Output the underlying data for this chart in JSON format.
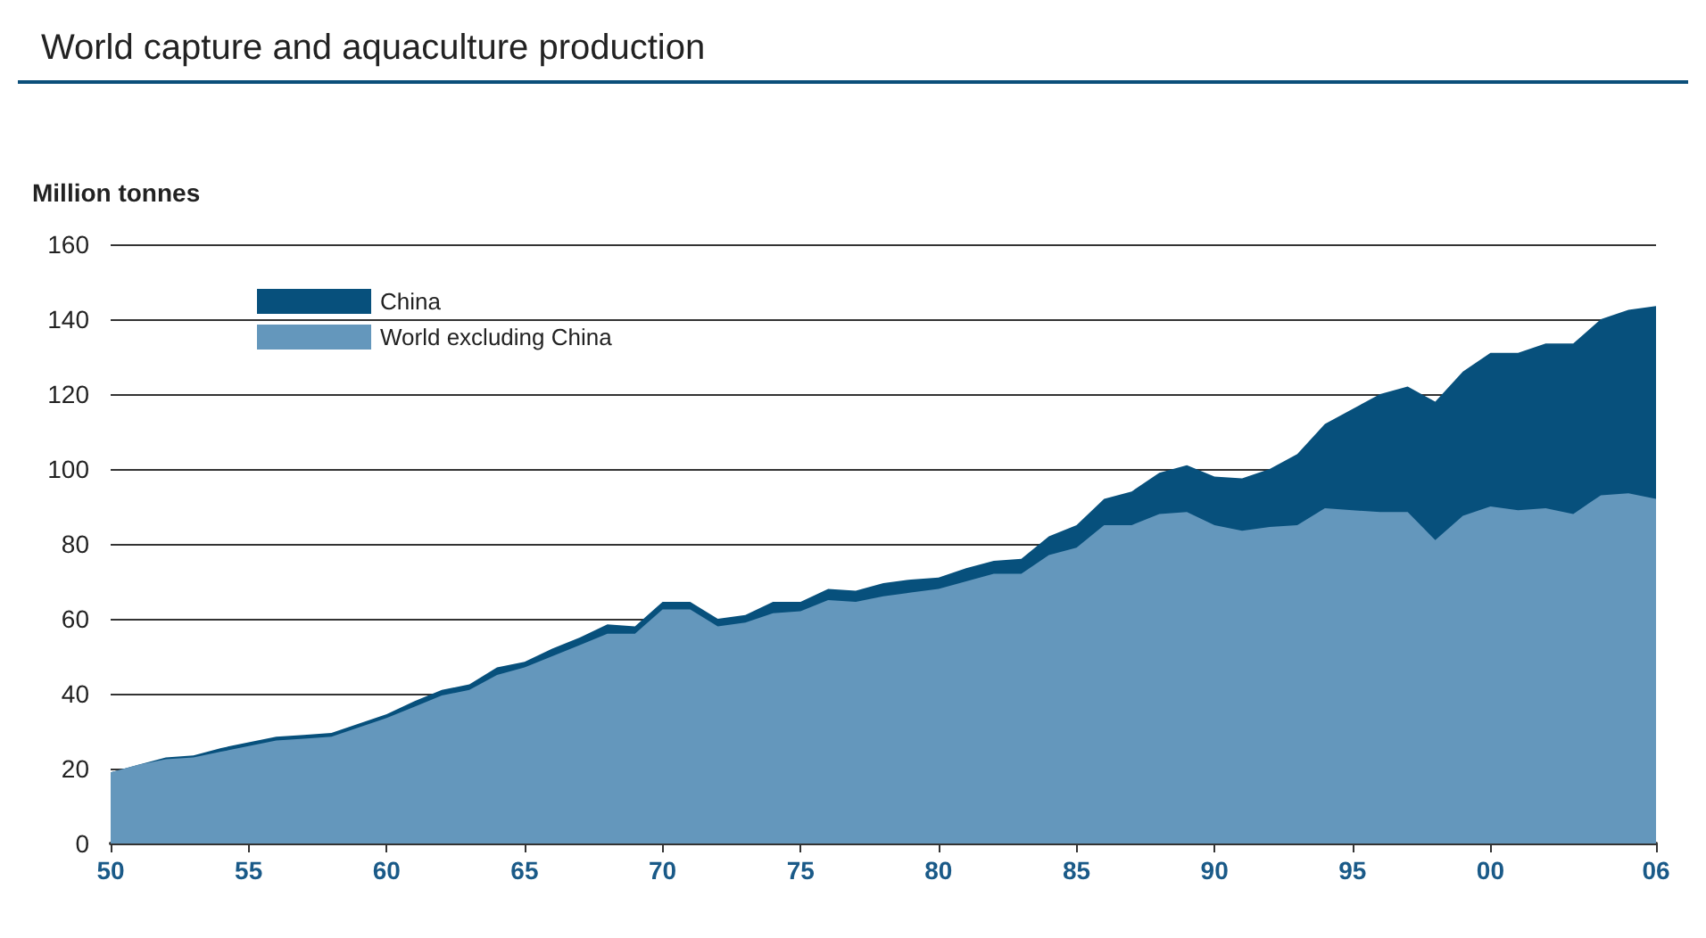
{
  "chart_data": {
    "type": "area",
    "title": "World capture and aquaculture production",
    "ylabel": "Million tonnes",
    "stacked": true,
    "x": [
      1950,
      1951,
      1952,
      1953,
      1954,
      1955,
      1956,
      1957,
      1958,
      1959,
      1960,
      1961,
      1962,
      1963,
      1964,
      1965,
      1966,
      1967,
      1968,
      1969,
      1970,
      1971,
      1972,
      1973,
      1974,
      1975,
      1976,
      1977,
      1978,
      1979,
      1980,
      1981,
      1982,
      1983,
      1984,
      1985,
      1986,
      1987,
      1988,
      1989,
      1990,
      1991,
      1992,
      1993,
      1994,
      1995,
      1996,
      1997,
      1998,
      1999,
      2000,
      2001,
      2002,
      2003,
      2004,
      2005,
      2006
    ],
    "series": [
      {
        "name": "World excluding China",
        "color": "#6497bc",
        "values": [
          19,
          21,
          22.5,
          23,
          24.5,
          26,
          27.5,
          28,
          28.5,
          31,
          33.5,
          36.5,
          39.5,
          41,
          45,
          47,
          50,
          53,
          56,
          56,
          62.5,
          62.5,
          58,
          59,
          61.5,
          62,
          65,
          64.5,
          66,
          67,
          68,
          70,
          72,
          72,
          77,
          79,
          85,
          85,
          88,
          88.5,
          85,
          83.5,
          84.5,
          85,
          89.5,
          89,
          88.5,
          88.5,
          81,
          87.5,
          90,
          89,
          89.5,
          88,
          93,
          93.5,
          92
        ]
      },
      {
        "name": "China",
        "color": "#07507c",
        "values": [
          0,
          0,
          0.5,
          0.5,
          1,
          1,
          1,
          1,
          1,
          1,
          1,
          1.5,
          1.5,
          1.5,
          2,
          1.5,
          2,
          2,
          2.5,
          2,
          2,
          2,
          2,
          2,
          3,
          2.5,
          3,
          3,
          3.5,
          3.5,
          3,
          3.5,
          3.5,
          4,
          5,
          6,
          7,
          9,
          11,
          12.5,
          13,
          14,
          15.5,
          19,
          22.5,
          27,
          31.5,
          33.5,
          37,
          38.5,
          41,
          42,
          44,
          45.5,
          47,
          49,
          51.5
        ]
      }
    ],
    "xlim": [
      1950,
      2006
    ],
    "xticks": [
      {
        "value": 1950,
        "label": "50"
      },
      {
        "value": 1955,
        "label": "55"
      },
      {
        "value": 1960,
        "label": "60"
      },
      {
        "value": 1965,
        "label": "65"
      },
      {
        "value": 1970,
        "label": "70"
      },
      {
        "value": 1975,
        "label": "75"
      },
      {
        "value": 1980,
        "label": "80"
      },
      {
        "value": 1985,
        "label": "85"
      },
      {
        "value": 1990,
        "label": "90"
      },
      {
        "value": 1995,
        "label": "95"
      },
      {
        "value": 2000,
        "label": "00"
      },
      {
        "value": 2006,
        "label": "06"
      }
    ],
    "ylim": [
      0,
      160
    ],
    "yticks": [
      0,
      20,
      40,
      60,
      80,
      100,
      120,
      140,
      160
    ],
    "grid": "y",
    "legend": "top left"
  }
}
